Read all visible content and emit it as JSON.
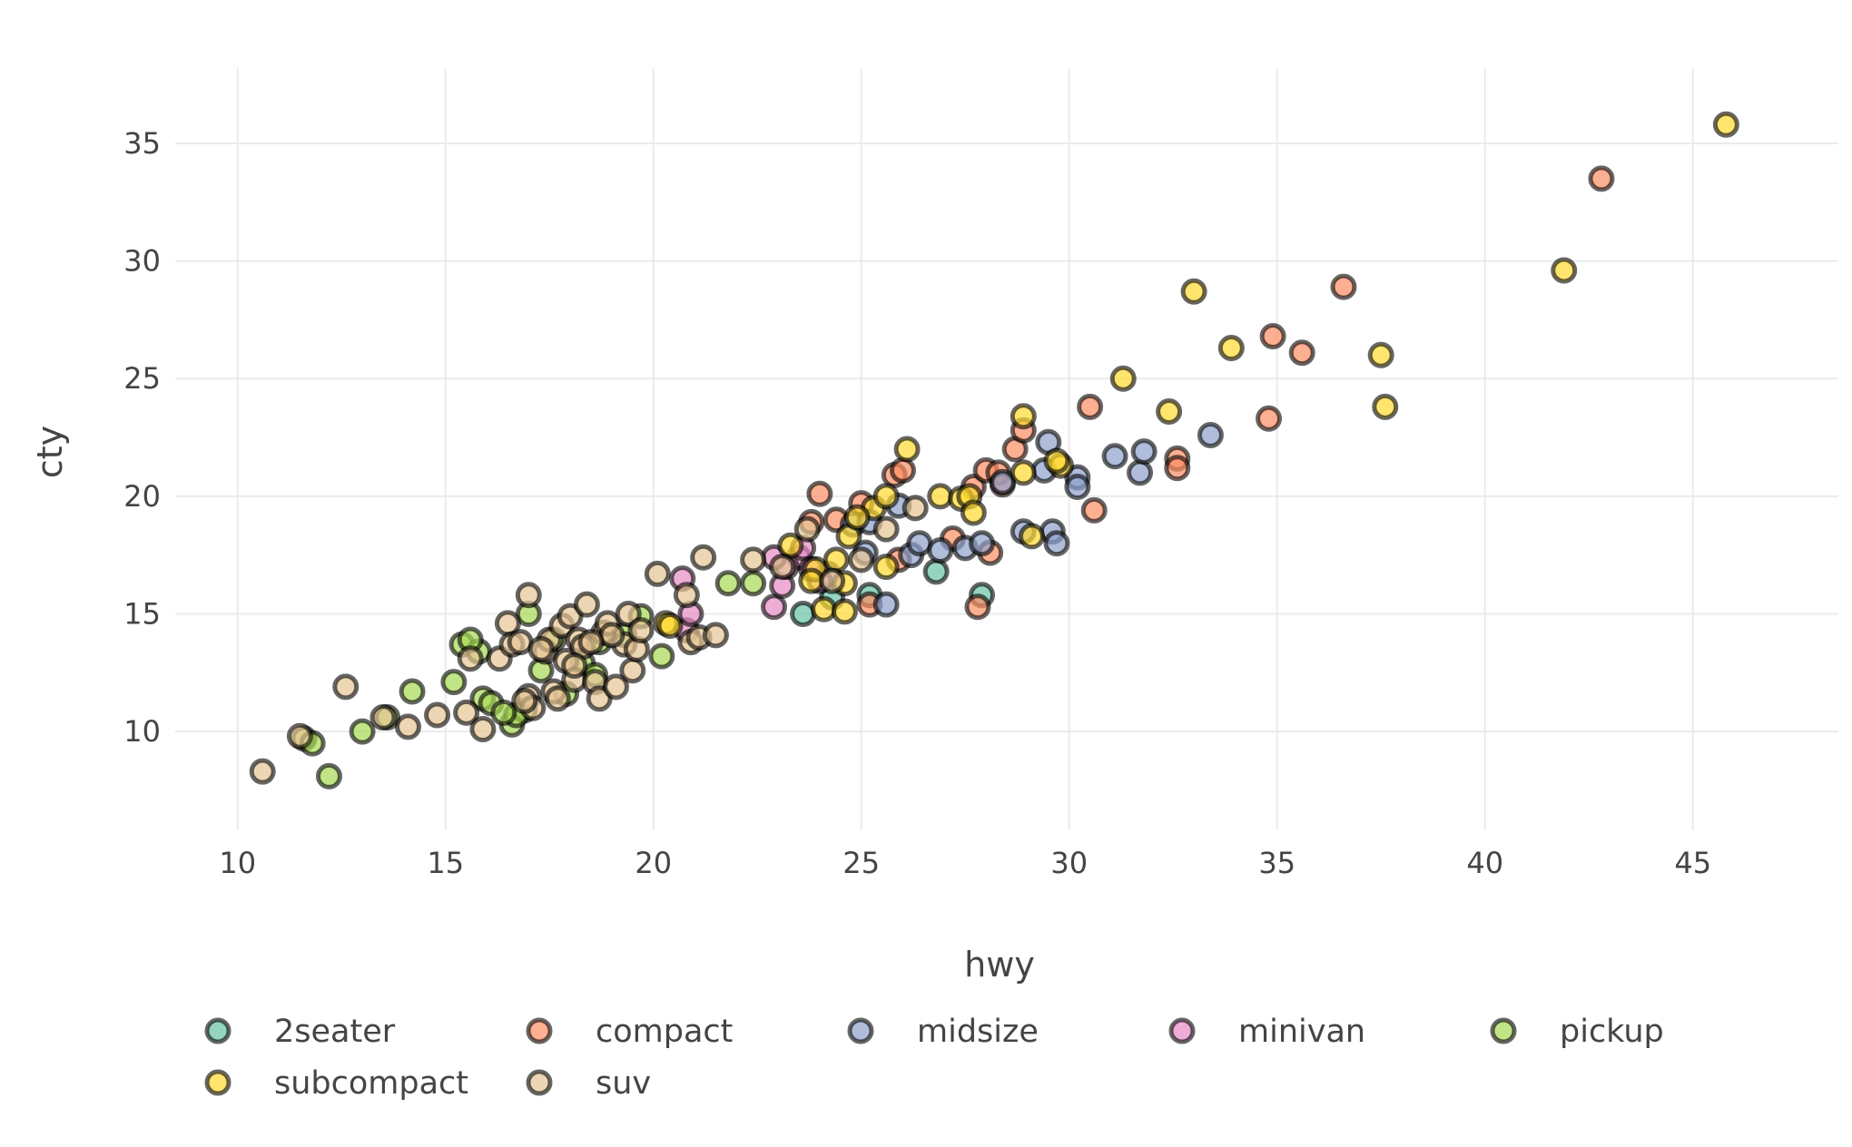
{
  "chart_data": {
    "type": "scatter",
    "xlabel": "hwy",
    "ylabel": "cty",
    "xlim": [
      8.5,
      48.5
    ],
    "ylim": [
      5.8,
      38.2
    ],
    "x_ticks": [
      10,
      15,
      20,
      25,
      30,
      35,
      40,
      45
    ],
    "y_ticks": [
      10,
      15,
      20,
      25,
      30,
      35
    ],
    "grid": true,
    "legend_position": "bottom",
    "marker": "circle",
    "point_opacity": 0.7,
    "series": [
      {
        "name": "2seater",
        "color": "#66c2a5",
        "points": [
          [
            23.6,
            15.0
          ],
          [
            24.3,
            15.7
          ],
          [
            25.2,
            15.8
          ],
          [
            26.8,
            16.8
          ],
          [
            27.9,
            15.8
          ]
        ]
      },
      {
        "name": "compact",
        "color": "#fc8d62",
        "points": [
          [
            24.0,
            20.1
          ],
          [
            25.0,
            19.7
          ],
          [
            25.8,
            20.9
          ],
          [
            26.0,
            21.1
          ],
          [
            27.7,
            20.4
          ],
          [
            28.0,
            21.1
          ],
          [
            28.3,
            21.0
          ],
          [
            28.7,
            22.0
          ],
          [
            28.9,
            22.8
          ],
          [
            30.5,
            23.8
          ],
          [
            30.6,
            19.4
          ],
          [
            32.6,
            21.6
          ],
          [
            32.6,
            21.2
          ],
          [
            34.8,
            23.3
          ],
          [
            34.9,
            26.8
          ],
          [
            35.6,
            26.1
          ],
          [
            36.6,
            28.9
          ],
          [
            42.8,
            33.5
          ],
          [
            27.8,
            15.3
          ],
          [
            28.1,
            17.6
          ],
          [
            25.2,
            15.4
          ],
          [
            23.8,
            18.9
          ],
          [
            27.2,
            18.2
          ],
          [
            25.9,
            17.3
          ],
          [
            24.4,
            19.0
          ],
          [
            28.4,
            20.5
          ]
        ]
      },
      {
        "name": "midsize",
        "color": "#8da0cb",
        "points": [
          [
            26.2,
            17.5
          ],
          [
            26.4,
            18.0
          ],
          [
            26.9,
            17.7
          ],
          [
            27.5,
            17.8
          ],
          [
            27.9,
            18.0
          ],
          [
            28.9,
            18.5
          ],
          [
            29.6,
            18.5
          ],
          [
            29.7,
            18.0
          ],
          [
            29.4,
            21.1
          ],
          [
            29.5,
            22.3
          ],
          [
            30.2,
            20.8
          ],
          [
            30.2,
            20.4
          ],
          [
            31.1,
            21.7
          ],
          [
            31.7,
            21.0
          ],
          [
            31.8,
            21.9
          ],
          [
            33.4,
            22.6
          ],
          [
            25.9,
            19.6
          ],
          [
            25.1,
            17.6
          ],
          [
            25.6,
            15.4
          ],
          [
            24.8,
            18.8
          ],
          [
            28.4,
            20.6
          ],
          [
            25.2,
            18.9
          ],
          [
            24.2,
            16.7
          ]
        ]
      },
      {
        "name": "minivan",
        "color": "#e78ac3",
        "points": [
          [
            20.7,
            16.5
          ],
          [
            20.8,
            14.3
          ],
          [
            22.9,
            15.3
          ],
          [
            23.1,
            16.2
          ],
          [
            23.5,
            17.4
          ],
          [
            23.6,
            17.8
          ],
          [
            23.2,
            17.0
          ],
          [
            24.0,
            16.4
          ],
          [
            22.9,
            17.4
          ],
          [
            23.8,
            16.9
          ],
          [
            20.9,
            15.0
          ]
        ]
      },
      {
        "name": "pickup",
        "color": "#a6d854",
        "points": [
          [
            11.6,
            9.7
          ],
          [
            11.8,
            9.5
          ],
          [
            12.2,
            8.1
          ],
          [
            13.0,
            10.0
          ],
          [
            13.6,
            10.6
          ],
          [
            15.2,
            12.1
          ],
          [
            15.4,
            13.7
          ],
          [
            15.8,
            13.4
          ],
          [
            15.9,
            11.4
          ],
          [
            16.1,
            11.2
          ],
          [
            16.6,
            10.3
          ],
          [
            16.9,
            10.9
          ],
          [
            17.0,
            15.0
          ],
          [
            17.3,
            12.6
          ],
          [
            17.9,
            11.6
          ],
          [
            18.3,
            12.9
          ],
          [
            18.7,
            13.8
          ],
          [
            19.3,
            14.1
          ],
          [
            20.2,
            13.2
          ],
          [
            21.8,
            16.3
          ],
          [
            22.4,
            16.3
          ],
          [
            17.6,
            13.9
          ],
          [
            18.6,
            12.4
          ],
          [
            16.7,
            10.7
          ],
          [
            14.2,
            11.7
          ],
          [
            19.7,
            14.9
          ],
          [
            15.6,
            13.9
          ],
          [
            16.4,
            10.8
          ]
        ]
      },
      {
        "name": "subcompact",
        "color": "#ffd92f",
        "points": [
          [
            20.3,
            14.6
          ],
          [
            23.3,
            17.9
          ],
          [
            23.9,
            16.9
          ],
          [
            24.1,
            15.2
          ],
          [
            24.4,
            17.3
          ],
          [
            24.6,
            15.1
          ],
          [
            24.7,
            18.3
          ],
          [
            25.3,
            19.5
          ],
          [
            25.6,
            20.0
          ],
          [
            26.1,
            22.0
          ],
          [
            26.9,
            20.0
          ],
          [
            27.4,
            19.9
          ],
          [
            27.6,
            20.0
          ],
          [
            27.7,
            19.3
          ],
          [
            28.9,
            21.0
          ],
          [
            28.9,
            23.4
          ],
          [
            29.1,
            18.3
          ],
          [
            29.8,
            21.3
          ],
          [
            31.3,
            25.0
          ],
          [
            32.4,
            23.6
          ],
          [
            33.0,
            28.7
          ],
          [
            33.9,
            26.3
          ],
          [
            37.5,
            26.0
          ],
          [
            37.6,
            23.8
          ],
          [
            41.9,
            29.6
          ],
          [
            45.8,
            35.8
          ],
          [
            24.6,
            16.3
          ],
          [
            25.6,
            17.0
          ],
          [
            24.9,
            19.1
          ],
          [
            29.7,
            21.5
          ],
          [
            23.8,
            16.4
          ],
          [
            20.4,
            14.5
          ]
        ]
      },
      {
        "name": "suv",
        "color": "#e5c494",
        "points": [
          [
            10.6,
            8.3
          ],
          [
            11.5,
            9.8
          ],
          [
            12.6,
            11.9
          ],
          [
            13.5,
            10.6
          ],
          [
            14.1,
            10.2
          ],
          [
            14.8,
            10.7
          ],
          [
            15.5,
            10.8
          ],
          [
            15.6,
            13.1
          ],
          [
            15.9,
            10.1
          ],
          [
            16.3,
            13.1
          ],
          [
            16.5,
            14.6
          ],
          [
            16.6,
            13.7
          ],
          [
            16.8,
            13.8
          ],
          [
            17.0,
            15.8
          ],
          [
            17.0,
            11.5
          ],
          [
            17.1,
            11.0
          ],
          [
            17.4,
            13.4
          ],
          [
            17.5,
            13.9
          ],
          [
            17.6,
            11.7
          ],
          [
            17.7,
            11.4
          ],
          [
            17.8,
            14.5
          ],
          [
            17.9,
            13.0
          ],
          [
            18.0,
            14.9
          ],
          [
            18.1,
            12.2
          ],
          [
            18.2,
            13.9
          ],
          [
            18.3,
            13.6
          ],
          [
            18.4,
            15.4
          ],
          [
            18.6,
            12.1
          ],
          [
            18.7,
            11.4
          ],
          [
            18.8,
            14.2
          ],
          [
            18.9,
            14.6
          ],
          [
            19.1,
            11.9
          ],
          [
            19.3,
            13.7
          ],
          [
            19.4,
            15.0
          ],
          [
            19.5,
            12.6
          ],
          [
            19.6,
            13.5
          ],
          [
            19.7,
            14.3
          ],
          [
            20.1,
            16.7
          ],
          [
            20.8,
            15.8
          ],
          [
            20.9,
            13.8
          ],
          [
            21.1,
            14.0
          ],
          [
            21.2,
            17.4
          ],
          [
            21.5,
            14.1
          ],
          [
            22.4,
            17.3
          ],
          [
            23.1,
            17.0
          ],
          [
            23.7,
            18.6
          ],
          [
            24.3,
            16.4
          ],
          [
            25.0,
            17.3
          ],
          [
            25.6,
            18.6
          ],
          [
            26.3,
            19.5
          ],
          [
            18.1,
            12.8
          ],
          [
            19.0,
            14.1
          ],
          [
            17.3,
            13.5
          ],
          [
            16.9,
            11.3
          ],
          [
            18.5,
            13.8
          ]
        ]
      }
    ]
  }
}
